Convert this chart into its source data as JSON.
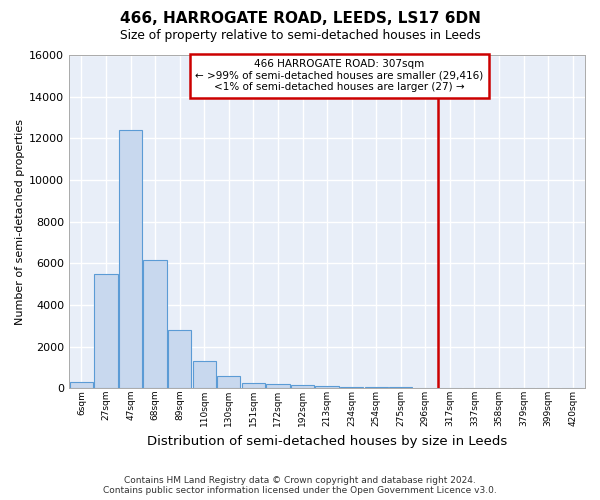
{
  "title": "466, HARROGATE ROAD, LEEDS, LS17 6DN",
  "subtitle": "Size of property relative to semi-detached houses in Leeds",
  "xlabel": "Distribution of semi-detached houses by size in Leeds",
  "ylabel": "Number of semi-detached properties",
  "bar_color": "#c8d8ee",
  "bar_edge_color": "#5b9bd5",
  "fig_background_color": "#ffffff",
  "plot_background_color": "#e8eef8",
  "grid_color": "#ffffff",
  "bin_labels": [
    "6sqm",
    "27sqm",
    "47sqm",
    "68sqm",
    "89sqm",
    "110sqm",
    "130sqm",
    "151sqm",
    "172sqm",
    "192sqm",
    "213sqm",
    "234sqm",
    "254sqm",
    "275sqm",
    "296sqm",
    "317sqm",
    "337sqm",
    "358sqm",
    "379sqm",
    "399sqm",
    "420sqm"
  ],
  "bar_heights": [
    300,
    5500,
    12400,
    6150,
    2800,
    1300,
    600,
    250,
    200,
    150,
    100,
    90,
    60,
    50,
    0,
    0,
    0,
    0,
    0,
    0,
    0
  ],
  "ylim": [
    0,
    16000
  ],
  "yticks": [
    0,
    2000,
    4000,
    6000,
    8000,
    10000,
    12000,
    14000,
    16000
  ],
  "vline_x": 14.5,
  "annotation_title": "466 HARROGATE ROAD: 307sqm",
  "annotation_line2": "← >99% of semi-detached houses are smaller (29,416)",
  "annotation_line3": "<1% of semi-detached houses are larger (27) →",
  "annotation_box_facecolor": "#ffffff",
  "annotation_box_edgecolor": "#cc0000",
  "vline_color": "#cc0000",
  "footer_line1": "Contains HM Land Registry data © Crown copyright and database right 2024.",
  "footer_line2": "Contains public sector information licensed under the Open Government Licence v3.0."
}
